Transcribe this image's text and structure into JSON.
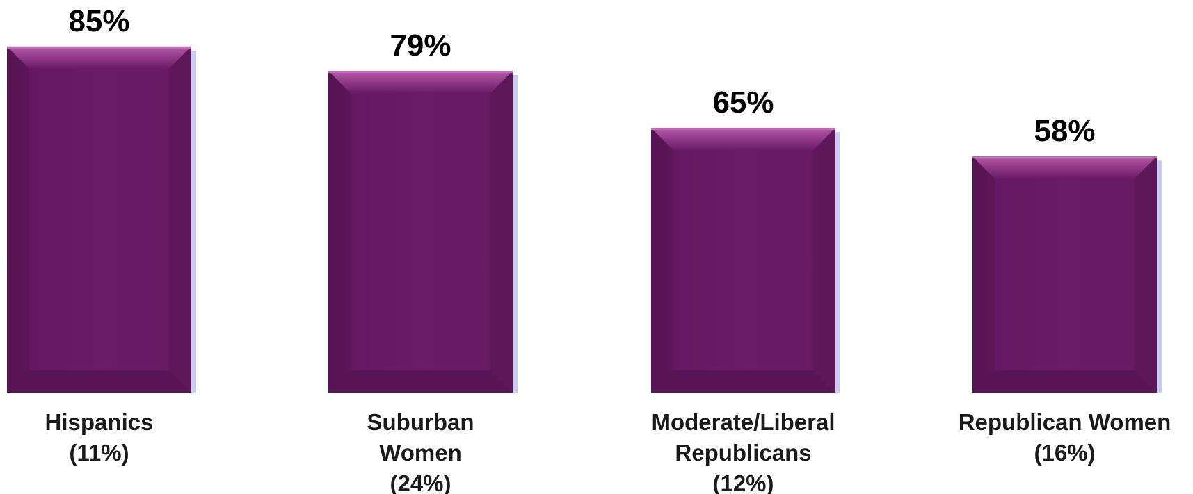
{
  "colors": {
    "bar_main": "#6b1a66",
    "bar_dark": "#5c1658",
    "bar_light": "#b45aa8",
    "shadow": "#b9bff0",
    "label": "#000000"
  },
  "chart_data": {
    "type": "bar",
    "categories": [
      [
        "Hispanics",
        "(11%)"
      ],
      [
        "Suburban",
        "Women",
        "(24%)"
      ],
      [
        "Moderate/Liberal",
        "Republicans",
        "(12%)"
      ],
      [
        "Republican Women",
        "(16%)"
      ]
    ],
    "values": [
      85,
      79,
      65,
      58
    ],
    "value_labels": [
      "85%",
      "79%",
      "65%",
      "58%"
    ],
    "ylim": [
      0,
      100
    ],
    "grid": false,
    "legend": "none"
  }
}
